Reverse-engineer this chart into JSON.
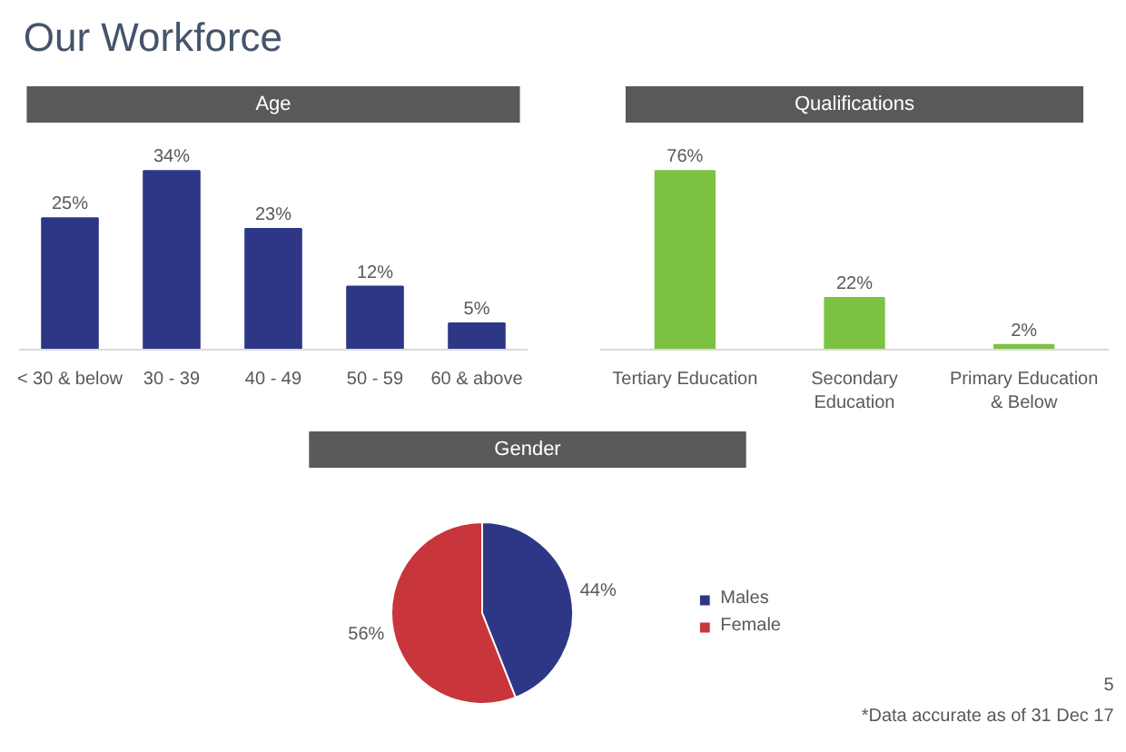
{
  "chart_data": [
    {
      "type": "bar",
      "title": "Age",
      "annotations": [
        "Our Workforce"
      ],
      "categories": [
        "< 30 & below",
        "30 - 39",
        "40 - 49",
        "50 - 59",
        "60 & above"
      ],
      "values": [
        25,
        34,
        23,
        12,
        5
      ],
      "value_labels": [
        "25%",
        "34%",
        "23%",
        "12%",
        "5%"
      ],
      "color": "#2e3786",
      "tick_labels": "x"
    },
    {
      "type": "bar",
      "title": "Qualifications",
      "categories": [
        "Tertiary Education",
        "Secondary Education",
        "Primary Education & Below"
      ],
      "values": [
        76,
        22,
        2
      ],
      "value_labels": [
        "76%",
        "22%",
        "2%"
      ],
      "color": "#7cc242",
      "tick_labels": "x"
    },
    {
      "type": "pie",
      "title": "Gender",
      "categories": [
        "Males",
        "Female"
      ],
      "values": [
        44,
        56
      ],
      "colors": [
        "#2e3786",
        "#c8353a"
      ],
      "value_labels": [
        "44%",
        "56%"
      ],
      "legend": "right",
      "annotations": [
        "5",
        "*Data accurate as of 31 Dec 17"
      ]
    }
  ]
}
